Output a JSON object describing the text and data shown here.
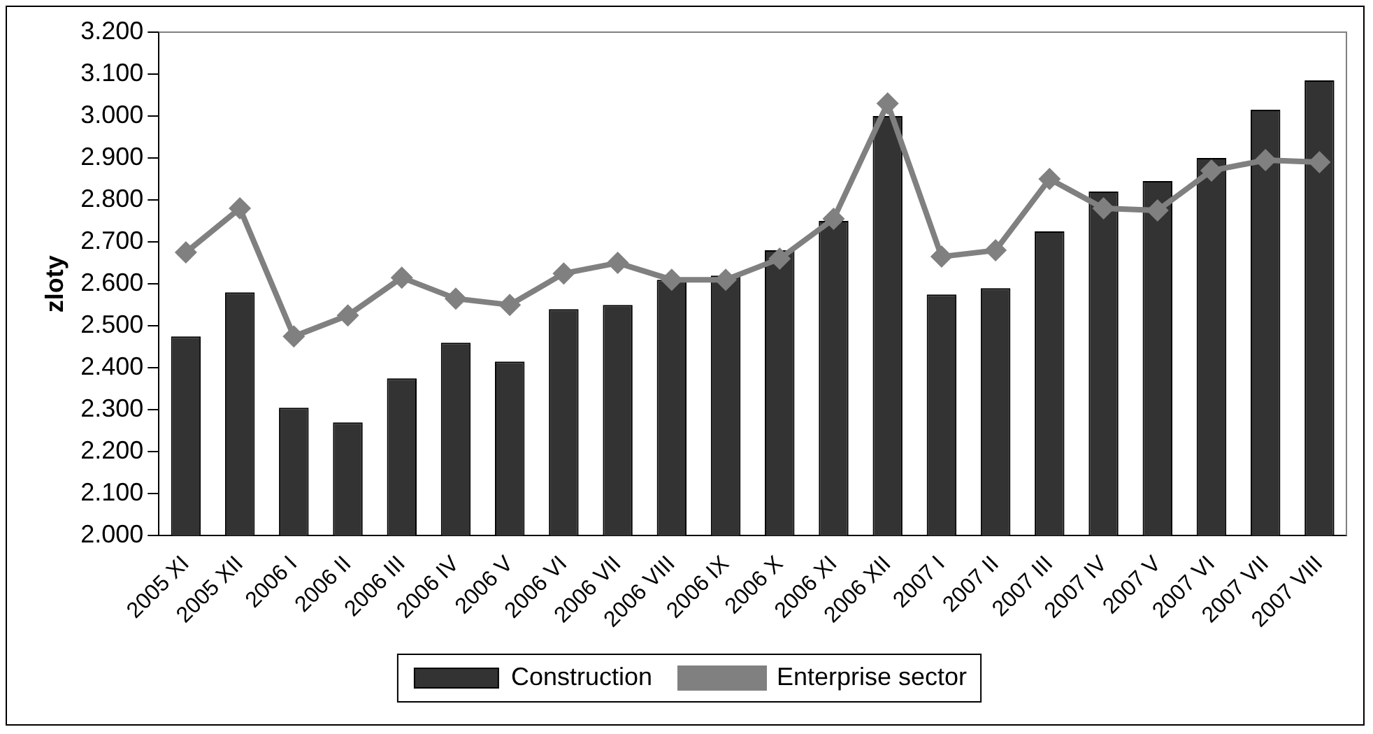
{
  "chart_data": {
    "type": "bar",
    "ylabel": "zloty",
    "categories": [
      "2005 XI",
      "2005 XII",
      "2006 I",
      "2006 II",
      "2006 III",
      "2006 IV",
      "2006 V",
      "2006 VI",
      "2006 VII",
      "2006 VIII",
      "2006 IX",
      "2006 X",
      "2006 XI",
      "2006 XII",
      "2007 I",
      "2007 II",
      "2007 III",
      "2007 IV",
      "2007 V",
      "2007 VI",
      "2007 VII",
      "2007 VIII"
    ],
    "series": [
      {
        "name": "Construction",
        "color": "#333333",
        "values": [
          2475,
          2580,
          2305,
          2270,
          2375,
          2460,
          2415,
          2540,
          2550,
          2610,
          2620,
          2680,
          2750,
          3000,
          2575,
          2590,
          2725,
          2820,
          2845,
          2900,
          3015,
          3085
        ]
      },
      {
        "name": "Enterprise sector",
        "type": "line",
        "color": "#808080",
        "marker": "diamond",
        "values": [
          2675,
          2780,
          2475,
          2525,
          2615,
          2565,
          2550,
          2625,
          2650,
          2610,
          2610,
          2660,
          2755,
          3030,
          2665,
          2680,
          2850,
          2780,
          2775,
          2870,
          2895,
          2890
        ]
      }
    ],
    "ylim": [
      2000,
      3200
    ],
    "yticks": [
      {
        "value": 2000,
        "label": "2.000"
      },
      {
        "value": 2100,
        "label": "2.100"
      },
      {
        "value": 2200,
        "label": "2.200"
      },
      {
        "value": 2300,
        "label": "2.300"
      },
      {
        "value": 2400,
        "label": "2.400"
      },
      {
        "value": 2500,
        "label": "2.500"
      },
      {
        "value": 2600,
        "label": "2.600"
      },
      {
        "value": 2700,
        "label": "2.700"
      },
      {
        "value": 2800,
        "label": "2.800"
      },
      {
        "value": 2900,
        "label": "2.900"
      },
      {
        "value": 3000,
        "label": "3.000"
      },
      {
        "value": 3100,
        "label": "3.100"
      },
      {
        "value": 3200,
        "label": "3.200"
      }
    ],
    "grid": false,
    "legend": "bottom"
  }
}
